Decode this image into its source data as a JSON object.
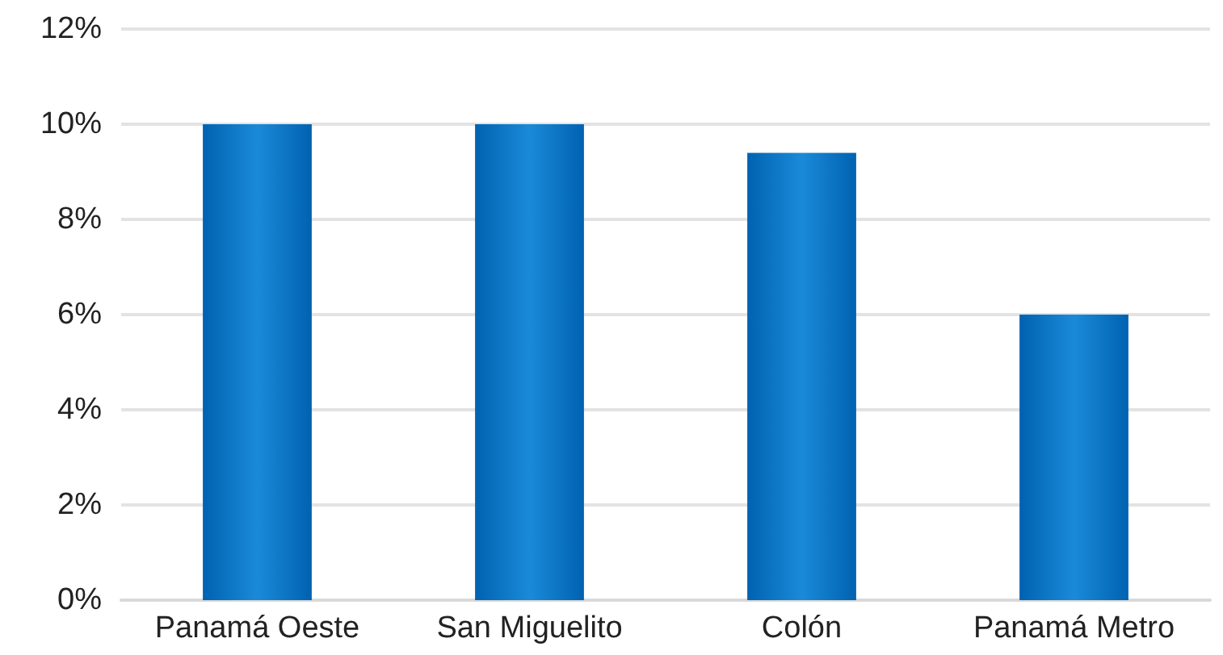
{
  "chart_data": {
    "type": "bar",
    "categories": [
      "Panamá Oeste",
      "San Miguelito",
      "Colón",
      "Panamá Metro"
    ],
    "values": [
      10,
      10,
      9.4,
      6
    ],
    "color": "#0062b1",
    "ylim": [
      0,
      12
    ],
    "yticks": [
      {
        "value": 0,
        "label": "0%"
      },
      {
        "value": 2,
        "label": "2%"
      },
      {
        "value": 4,
        "label": "4%"
      },
      {
        "value": 6,
        "label": "6%"
      },
      {
        "value": 8,
        "label": "8%"
      },
      {
        "value": 10,
        "label": "10%"
      },
      {
        "value": 12,
        "label": "12%"
      }
    ],
    "grid": "y"
  }
}
